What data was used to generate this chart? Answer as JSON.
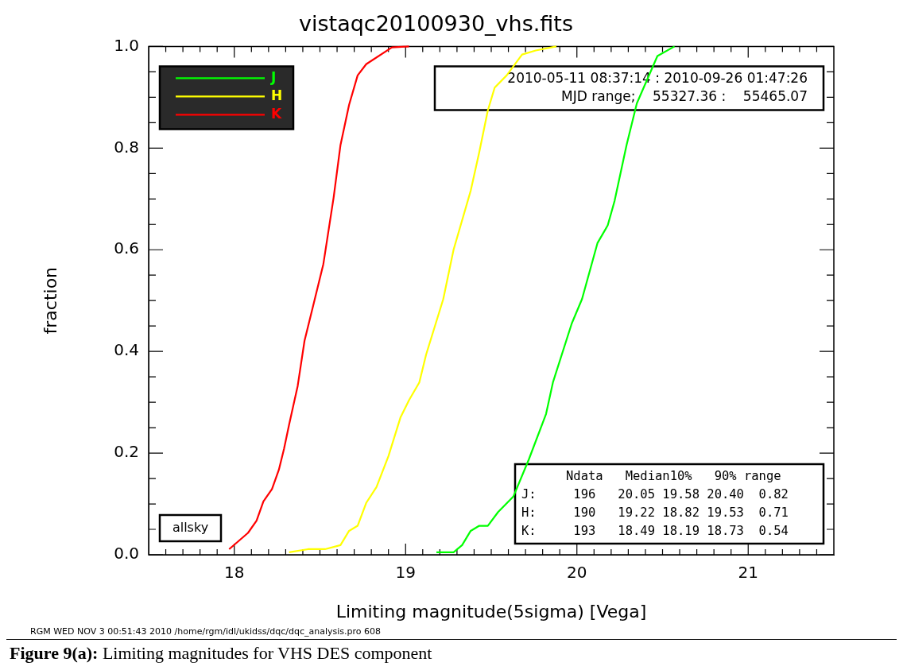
{
  "chart_data": {
    "type": "line",
    "title": "vistaqc20100930_vhs.fits",
    "xlabel": "Limiting magnitude(5sigma) [Vega]",
    "ylabel": "fraction",
    "xlim": [
      17.5,
      21.5
    ],
    "xticks": [
      {
        "value": 17.6,
        "label": null
      },
      {
        "value": 17.7,
        "label": null
      },
      {
        "value": 17.8,
        "label": null
      },
      {
        "value": 17.9,
        "label": null
      },
      18,
      {
        "value": 18.1,
        "label": null
      },
      {
        "value": 18.2,
        "label": null
      },
      {
        "value": 18.3,
        "label": null
      },
      {
        "value": 18.4,
        "label": null
      },
      {
        "value": 18.5,
        "label": null
      },
      {
        "value": 18.6,
        "label": null
      },
      {
        "value": 18.7,
        "label": null
      },
      {
        "value": 18.8,
        "label": null
      },
      {
        "value": 18.9,
        "label": null
      },
      19,
      {
        "value": 19.1,
        "label": null
      },
      {
        "value": 19.2,
        "label": null
      },
      {
        "value": 19.3,
        "label": null
      },
      {
        "value": 19.4,
        "label": null
      },
      {
        "value": 19.5,
        "label": null
      },
      {
        "value": 19.6,
        "label": null
      },
      {
        "value": 19.7,
        "label": null
      },
      {
        "value": 19.8,
        "label": null
      },
      {
        "value": 19.9,
        "label": null
      },
      20,
      {
        "value": 20.1,
        "label": null
      },
      {
        "value": 20.2,
        "label": null
      },
      {
        "value": 20.3,
        "label": null
      },
      {
        "value": 20.4,
        "label": null
      },
      {
        "value": 20.5,
        "label": null
      },
      {
        "value": 20.6,
        "label": null
      },
      {
        "value": 20.7,
        "label": null
      },
      {
        "value": 20.8,
        "label": null
      },
      {
        "value": 20.9,
        "label": null
      },
      21,
      {
        "value": 21.1,
        "label": null
      },
      {
        "value": 21.2,
        "label": null
      },
      {
        "value": 21.3,
        "label": null
      },
      {
        "value": 21.4,
        "label": null
      }
    ],
    "ylim": [
      0,
      1
    ],
    "yticks": [
      {
        "value": 0,
        "label": "0.0"
      },
      {
        "value": 0.05,
        "label": null
      },
      {
        "value": 0.1,
        "label": null
      },
      {
        "value": 0.15,
        "label": null
      },
      0.2,
      {
        "value": 0.25,
        "label": null
      },
      {
        "value": 0.3,
        "label": null
      },
      {
        "value": 0.35,
        "label": null
      },
      0.4,
      {
        "value": 0.45,
        "label": null
      },
      {
        "value": 0.5,
        "label": null
      },
      {
        "value": 0.55,
        "label": null
      },
      0.6,
      {
        "value": 0.65,
        "label": null
      },
      {
        "value": 0.7,
        "label": null
      },
      {
        "value": 0.75,
        "label": null
      },
      0.8,
      {
        "value": 0.85,
        "label": null
      },
      {
        "value": 0.9,
        "label": null
      },
      {
        "value": 0.95,
        "label": null
      },
      {
        "value": 1,
        "label": "1.0"
      }
    ],
    "legend": "top left",
    "series": [
      {
        "name": "J",
        "color": "#00ff00",
        "x": [
          19.18,
          19.28,
          19.33,
          19.38,
          19.43,
          19.48,
          19.54,
          19.63,
          19.72,
          19.82,
          19.86,
          19.97,
          20.03,
          20.12,
          20.18,
          20.22,
          20.29,
          20.35,
          20.47,
          20.57
        ],
        "values": [
          0.005,
          0.005,
          0.019,
          0.047,
          0.057,
          0.057,
          0.084,
          0.115,
          0.188,
          0.277,
          0.339,
          0.455,
          0.503,
          0.613,
          0.648,
          0.696,
          0.806,
          0.888,
          0.981,
          1.0
        ]
      },
      {
        "name": "H",
        "color": "#ffff00",
        "x": [
          18.32,
          18.43,
          18.53,
          18.62,
          18.67,
          18.72,
          18.77,
          18.83,
          18.9,
          18.97,
          19.02,
          19.08,
          19.12,
          19.22,
          19.28,
          19.38,
          19.43,
          19.48,
          19.52,
          19.59,
          19.68,
          19.76,
          19.88
        ],
        "values": [
          0.005,
          0.011,
          0.011,
          0.019,
          0.047,
          0.057,
          0.102,
          0.133,
          0.194,
          0.27,
          0.304,
          0.339,
          0.394,
          0.503,
          0.6,
          0.716,
          0.792,
          0.874,
          0.919,
          0.943,
          0.984,
          0.992,
          1.0
        ]
      },
      {
        "name": "K",
        "color": "#ff0000",
        "x": [
          17.97,
          18.08,
          18.13,
          18.17,
          18.22,
          18.26,
          18.29,
          18.32,
          18.37,
          18.41,
          18.47,
          18.52,
          18.58,
          18.62,
          18.67,
          18.72,
          18.77,
          18.92,
          19.02
        ],
        "values": [
          0.011,
          0.043,
          0.067,
          0.105,
          0.129,
          0.167,
          0.208,
          0.256,
          0.332,
          0.421,
          0.503,
          0.572,
          0.703,
          0.806,
          0.885,
          0.943,
          0.965,
          0.998,
          1.0
        ]
      }
    ],
    "annotations": [
      "2010-05-11 08:37:14 : 2010-09-26 01:47:26",
      "MJD range;    55327.36 :    55465.07",
      "      Ndata   Median10%   90% range",
      "J:     196   20.05 19.58 20.40  0.82",
      "H:     190   19.22 18.82 19.53  0.71",
      "K:     193   18.49 18.19 18.73  0.54",
      "allsky",
      "RGM WED NOV  3 00:51:43 2010 /home/rgm/idl/ukidss/dqc/dqc_analysis.pro 608",
      "Figure 9(a): Limiting magnitudes for VHS DES component"
    ]
  }
}
